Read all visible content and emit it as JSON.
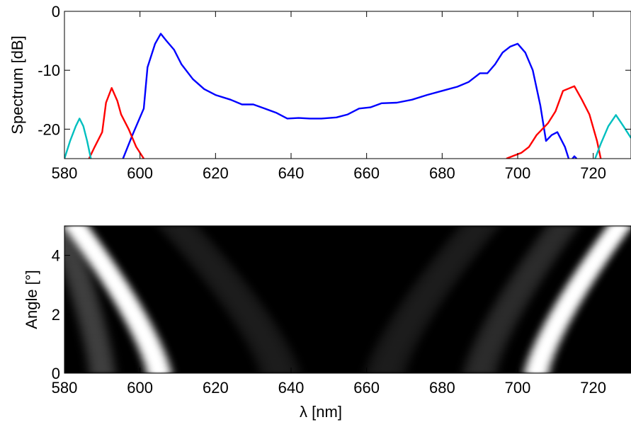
{
  "chart_data": [
    {
      "type": "line",
      "title": "",
      "xlabel": "",
      "ylabel": "Spectrum [dB]",
      "xlim": [
        580,
        730
      ],
      "ylim": [
        -25,
        0
      ],
      "xticks": [
        580,
        600,
        620,
        640,
        660,
        680,
        700,
        720
      ],
      "yticks": [
        0,
        -10,
        -20
      ],
      "grid": false,
      "legend": "none",
      "series": [
        {
          "color": "#0000ff",
          "points": [
            [
              595.5,
              -25
            ],
            [
              598,
              -21
            ],
            [
              601,
              -16.5
            ],
            [
              602,
              -9.5
            ],
            [
              604,
              -5.5
            ],
            [
              605.5,
              -3.8
            ],
            [
              607,
              -5
            ],
            [
              609,
              -6.5
            ],
            [
              611,
              -9
            ],
            [
              614,
              -11.5
            ],
            [
              617,
              -13.2
            ],
            [
              620,
              -14.2
            ],
            [
              624,
              -15
            ],
            [
              627,
              -15.8
            ],
            [
              630,
              -15.8
            ],
            [
              633,
              -16.5
            ],
            [
              636,
              -17.2
            ],
            [
              639,
              -18.2
            ],
            [
              642,
              -18.1
            ],
            [
              645,
              -18.2
            ],
            [
              648,
              -18.2
            ],
            [
              652,
              -18
            ],
            [
              655,
              -17.5
            ],
            [
              658,
              -16.5
            ],
            [
              661,
              -16.3
            ],
            [
              664,
              -15.6
            ],
            [
              668,
              -15.5
            ],
            [
              672,
              -15
            ],
            [
              676,
              -14.2
            ],
            [
              680,
              -13.5
            ],
            [
              684,
              -12.8
            ],
            [
              687,
              -12
            ],
            [
              690,
              -10.5
            ],
            [
              692,
              -10.5
            ],
            [
              694,
              -9
            ],
            [
              696,
              -7
            ],
            [
              698,
              -6
            ],
            [
              700,
              -5.5
            ],
            [
              702,
              -7
            ],
            [
              704,
              -10
            ],
            [
              706,
              -16
            ],
            [
              707.5,
              -22
            ],
            [
              709,
              -21
            ],
            [
              710.5,
              -20.5
            ],
            [
              712.5,
              -23
            ],
            [
              713.5,
              -25
            ]
          ]
        },
        {
          "color": "#0000ff",
          "points": [
            [
              714.5,
              -25
            ],
            [
              715,
              -24.6
            ],
            [
              715.6,
              -25
            ]
          ]
        },
        {
          "color": "#ff0000",
          "points": [
            [
              586.5,
              -25
            ],
            [
              588,
              -23
            ],
            [
              590,
              -20.5
            ],
            [
              591,
              -15.5
            ],
            [
              592.5,
              -13
            ],
            [
              594,
              -15.2
            ],
            [
              595,
              -17.5
            ],
            [
              597,
              -20
            ],
            [
              599,
              -23
            ],
            [
              601,
              -25
            ]
          ]
        },
        {
          "color": "#ff0000",
          "points": [
            [
              697,
              -25
            ],
            [
              699,
              -24.5
            ],
            [
              701,
              -24
            ],
            [
              703,
              -23
            ],
            [
              705,
              -21
            ],
            [
              708,
              -19
            ],
            [
              710,
              -17
            ],
            [
              712,
              -13.5
            ],
            [
              715,
              -12.7
            ],
            [
              717,
              -15
            ],
            [
              719,
              -17.5
            ],
            [
              721,
              -22
            ],
            [
              722,
              -25
            ]
          ]
        },
        {
          "color": "#00bfbf",
          "points": [
            [
              580,
              -25
            ],
            [
              581.5,
              -22
            ],
            [
              583,
              -19.5
            ],
            [
              584,
              -18.2
            ],
            [
              585,
              -19.5
            ],
            [
              586,
              -22
            ],
            [
              587,
              -25
            ]
          ]
        },
        {
          "color": "#00bfbf",
          "points": [
            [
              720.5,
              -25
            ],
            [
              722,
              -22.5
            ],
            [
              724,
              -19.5
            ],
            [
              726,
              -17.6
            ],
            [
              728,
              -19.5
            ],
            [
              730,
              -21.5
            ]
          ]
        }
      ]
    },
    {
      "type": "heatmap",
      "title": "",
      "xlabel": "λ [nm]",
      "ylabel": "Angle [°]",
      "xlim": [
        580,
        730
      ],
      "ylim": [
        0,
        5
      ],
      "xticks": [
        580,
        600,
        620,
        640,
        660,
        680,
        700,
        720
      ],
      "yticks": [
        0,
        2,
        4
      ],
      "colormap": "gray",
      "grid": false,
      "bands": [
        {
          "x_at_angle_0": 605,
          "x_at_angle_max": 583,
          "width": 3.5,
          "intensity": 1.0
        },
        {
          "x_at_angle_0": 705,
          "x_at_angle_max": 727,
          "width": 3.5,
          "intensity": 1.0
        },
        {
          "x_at_angle_0": 590,
          "x_at_angle_max": 579,
          "width": 4,
          "intensity": 0.18
        },
        {
          "x_at_angle_0": 637,
          "x_at_angle_max": 610,
          "width": 6,
          "intensity": 0.08
        },
        {
          "x_at_angle_0": 665,
          "x_at_angle_max": 690,
          "width": 6,
          "intensity": 0.08
        },
        {
          "x_at_angle_0": 690,
          "x_at_angle_max": 712,
          "width": 5,
          "intensity": 0.12
        }
      ]
    }
  ]
}
